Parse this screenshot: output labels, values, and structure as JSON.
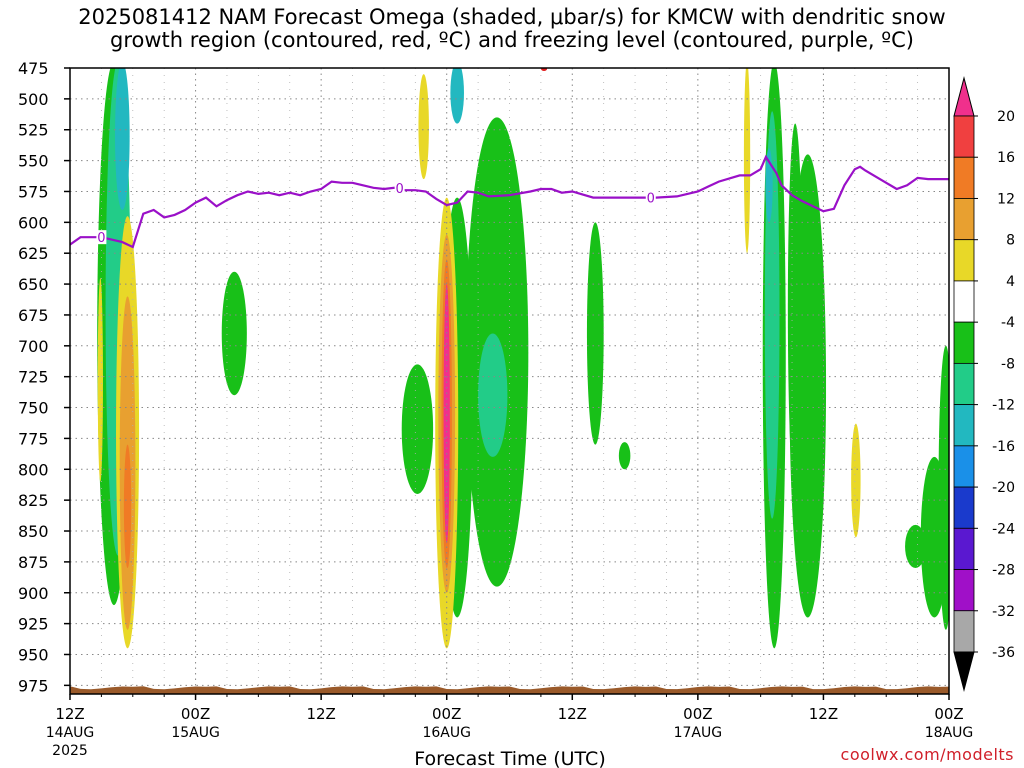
{
  "chart_data": {
    "type": "heatmap",
    "title_lines": [
      "2025081412 NAM Forecast Omega (shaded, μbar/s) for KMCW with dendritic snow",
      "growth region (contoured, red, ºC) and freezing level (contoured, purple, ºC)"
    ],
    "xlabel": "Forecast Time (UTC)",
    "x_range_hours": [
      0,
      84
    ],
    "x_ticks": [
      {
        "hour": 0,
        "top": "12Z",
        "bottom": "14AUG",
        "year": "2025"
      },
      {
        "hour": 12,
        "top": "00Z",
        "bottom": "15AUG",
        "year": ""
      },
      {
        "hour": 24,
        "top": "12Z",
        "bottom": "",
        "year": ""
      },
      {
        "hour": 36,
        "top": "00Z",
        "bottom": "16AUG",
        "year": ""
      },
      {
        "hour": 48,
        "top": "12Z",
        "bottom": "",
        "year": ""
      },
      {
        "hour": 60,
        "top": "00Z",
        "bottom": "17AUG",
        "year": ""
      },
      {
        "hour": 72,
        "top": "12Z",
        "bottom": "",
        "year": ""
      },
      {
        "hour": 84,
        "top": "00Z",
        "bottom": "18AUG",
        "year": ""
      }
    ],
    "y_range_mb": [
      475,
      982
    ],
    "y_ticks": [
      475,
      500,
      525,
      550,
      575,
      600,
      625,
      650,
      675,
      700,
      725,
      750,
      775,
      800,
      825,
      850,
      875,
      900,
      925,
      950,
      975
    ],
    "grid": true,
    "colorbar": {
      "labels": [
        "20",
        "16",
        "12",
        "8",
        "4",
        "-4",
        "-8",
        "-12",
        "-16",
        "-20",
        "-24",
        "-28",
        "-32",
        "-36"
      ],
      "colors": [
        "#f0308c",
        "#f04040",
        "#f07b25",
        "#e8a030",
        "#e8d828",
        "#ffffff",
        "#18c018",
        "#22cc88",
        "#22b8c0",
        "#1a90e8",
        "#1a3acc",
        "#5a18d0",
        "#a010c8",
        "#a8a8a8",
        "#000000"
      ]
    },
    "omega_regions": [
      {
        "color": "#18c018",
        "h": 4.2,
        "w": 3.2,
        "p1": 470,
        "p2": 910
      },
      {
        "color": "#22cc88",
        "h": 4.6,
        "w": 2.4,
        "p1": 470,
        "p2": 870
      },
      {
        "color": "#22b8c0",
        "h": 5.0,
        "w": 1.4,
        "p1": 470,
        "p2": 590
      },
      {
        "color": "#e8d828",
        "h": 5.5,
        "w": 2.2,
        "p1": 595,
        "p2": 945
      },
      {
        "color": "#e8a030",
        "h": 5.5,
        "w": 1.5,
        "p1": 660,
        "p2": 930
      },
      {
        "color": "#f07b25",
        "h": 5.5,
        "w": 0.7,
        "p1": 780,
        "p2": 880
      },
      {
        "color": "#e8d828",
        "h": 2.9,
        "w": 0.5,
        "p1": 645,
        "p2": 810
      },
      {
        "color": "#18c018",
        "h": 15.7,
        "w": 2.4,
        "p1": 640,
        "p2": 740
      },
      {
        "color": "#e8d828",
        "h": 33.8,
        "w": 1.0,
        "p1": 480,
        "p2": 565
      },
      {
        "color": "#22b8c0",
        "h": 37.0,
        "w": 1.3,
        "p1": 470,
        "p2": 520
      },
      {
        "color": "#18c018",
        "h": 33.2,
        "w": 3.0,
        "p1": 715,
        "p2": 820
      },
      {
        "color": "#18c018",
        "h": 37.0,
        "w": 3.0,
        "p1": 580,
        "p2": 920
      },
      {
        "color": "#e8d828",
        "h": 36.0,
        "w": 2.2,
        "p1": 580,
        "p2": 945
      },
      {
        "color": "#e8a030",
        "h": 36.0,
        "w": 1.6,
        "p1": 610,
        "p2": 900
      },
      {
        "color": "#f07b25",
        "h": 36.0,
        "w": 1.0,
        "p1": 630,
        "p2": 880
      },
      {
        "color": "#f0308c",
        "h": 36.0,
        "w": 0.6,
        "p1": 650,
        "p2": 860
      },
      {
        "color": "#18c018",
        "h": 40.8,
        "w": 6.0,
        "p1": 515,
        "p2": 895
      },
      {
        "color": "#22cc88",
        "h": 40.4,
        "w": 2.8,
        "p1": 690,
        "p2": 790
      },
      {
        "color": "#18c018",
        "h": 50.2,
        "w": 1.6,
        "p1": 600,
        "p2": 780
      },
      {
        "color": "#18c018",
        "h": 53.0,
        "w": 1.1,
        "p1": 778,
        "p2": 800
      },
      {
        "color": "#e8d828",
        "h": 64.7,
        "w": 0.6,
        "p1": 470,
        "p2": 625
      },
      {
        "color": "#18c018",
        "h": 67.3,
        "w": 2.2,
        "p1": 470,
        "p2": 945
      },
      {
        "color": "#22cc88",
        "h": 67.1,
        "w": 1.4,
        "p1": 510,
        "p2": 840
      },
      {
        "color": "#22b8c0",
        "h": 66.8,
        "w": 0.7,
        "p1": 540,
        "p2": 600
      },
      {
        "color": "#18c018",
        "h": 70.5,
        "w": 3.5,
        "p1": 545,
        "p2": 920
      },
      {
        "color": "#18c018",
        "h": 69.3,
        "w": 1.4,
        "p1": 520,
        "p2": 820
      },
      {
        "color": "#e8d828",
        "h": 75.1,
        "w": 0.9,
        "p1": 763,
        "p2": 855
      },
      {
        "color": "#18c018",
        "h": 80.8,
        "w": 2.0,
        "p1": 845,
        "p2": 880
      },
      {
        "color": "#18c018",
        "h": 82.6,
        "w": 2.6,
        "p1": 790,
        "p2": 920
      },
      {
        "color": "#18c018",
        "h": 83.7,
        "w": 1.4,
        "p1": 700,
        "p2": 930
      }
    ],
    "freezing_level_series": {
      "label": "0",
      "points": [
        [
          0,
          618
        ],
        [
          1,
          612
        ],
        [
          3,
          612
        ],
        [
          5,
          616
        ],
        [
          6,
          620
        ],
        [
          7,
          593
        ],
        [
          8,
          590
        ],
        [
          9,
          596
        ],
        [
          10,
          594
        ],
        [
          11,
          590
        ],
        [
          12,
          584
        ],
        [
          13,
          580
        ],
        [
          14,
          587
        ],
        [
          15,
          582
        ],
        [
          16,
          578
        ],
        [
          17,
          575
        ],
        [
          18,
          577
        ],
        [
          19,
          576
        ],
        [
          20,
          578
        ],
        [
          21,
          576
        ],
        [
          22,
          578
        ],
        [
          23,
          575
        ],
        [
          24,
          573
        ],
        [
          25,
          567
        ],
        [
          26,
          568
        ],
        [
          27,
          568
        ],
        [
          28,
          570
        ],
        [
          29,
          572
        ],
        [
          30,
          573
        ],
        [
          31,
          572
        ],
        [
          32,
          574
        ],
        [
          33,
          574
        ],
        [
          34,
          575
        ],
        [
          35,
          581
        ],
        [
          36,
          586
        ],
        [
          37,
          584
        ],
        [
          38,
          575
        ],
        [
          39,
          576
        ],
        [
          40,
          579
        ],
        [
          42,
          578
        ],
        [
          44,
          575
        ],
        [
          45,
          573
        ],
        [
          46,
          573
        ],
        [
          47,
          576
        ],
        [
          48,
          575
        ],
        [
          50,
          580
        ],
        [
          52,
          580
        ],
        [
          54,
          580
        ],
        [
          56,
          580
        ],
        [
          58,
          579
        ],
        [
          60,
          575
        ],
        [
          61,
          571
        ],
        [
          62,
          567
        ],
        [
          64,
          562
        ],
        [
          65,
          562
        ],
        [
          66,
          557
        ],
        [
          66.5,
          547
        ],
        [
          67.5,
          560
        ],
        [
          68,
          570
        ],
        [
          69,
          578
        ],
        [
          70,
          583
        ],
        [
          72,
          591
        ],
        [
          73,
          589
        ],
        [
          74,
          570
        ],
        [
          75,
          557
        ],
        [
          75.5,
          555
        ],
        [
          76,
          558
        ],
        [
          78,
          568
        ],
        [
          79,
          573
        ],
        [
          80,
          570
        ],
        [
          81,
          564
        ],
        [
          82,
          565
        ],
        [
          84,
          565
        ]
      ]
    },
    "dgz_marker_label": "-",
    "credit": "coolwx.com/modelts"
  }
}
